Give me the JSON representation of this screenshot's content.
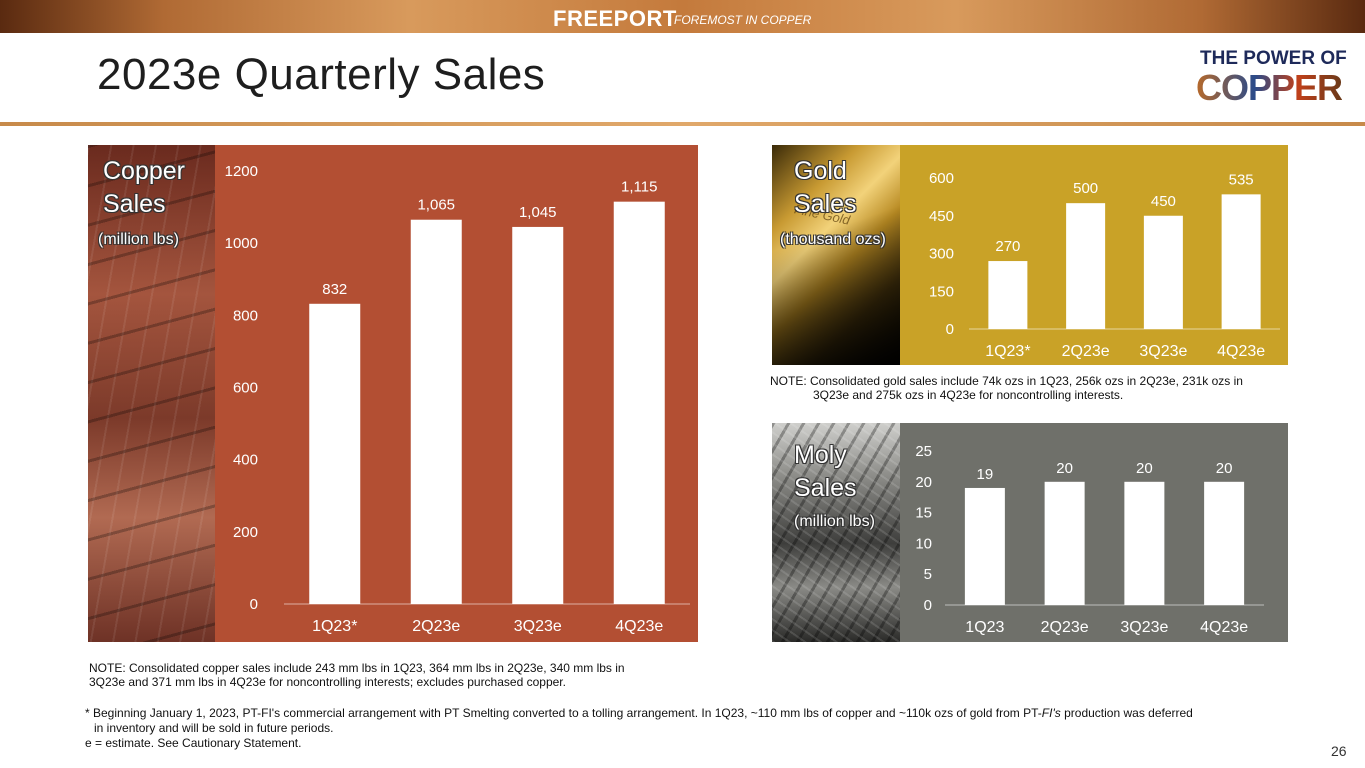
{
  "header": {
    "brand": "FREEPORT",
    "tagline": "FOREMOST IN COPPER",
    "title": "2023e Quarterly Sales",
    "logo_line1": "THE POWER OF",
    "logo_line2": "COPPER"
  },
  "colors": {
    "copper_panel": "#b34f33",
    "gold_panel": "#c9a227",
    "moly_panel": "#6f706a",
    "bar": "#ffffff"
  },
  "panels": {
    "copper": {
      "label_line1": "Copper",
      "label_line2": "Sales",
      "unit": "(million lbs)"
    },
    "gold": {
      "label_line1": "Gold",
      "label_line2": "Sales",
      "unit": "(thousand ozs)",
      "photo_text": "Fine Gold"
    },
    "moly": {
      "label_line1": "Moly",
      "label_line2": "Sales",
      "unit": "(million lbs)"
    }
  },
  "chart_data": [
    {
      "type": "bar",
      "title": "Copper Sales",
      "categories": [
        "1Q23*",
        "2Q23e",
        "3Q23e",
        "4Q23e"
      ],
      "values": [
        832,
        1065,
        1045,
        1115
      ],
      "data_labels": [
        "832",
        "1,065",
        "1,045",
        "1,115"
      ],
      "yticks": [
        "0",
        "200",
        "400",
        "600",
        "800",
        "1000",
        "1200"
      ],
      "ylim": [
        0,
        1200
      ],
      "ylabel": "(million lbs)",
      "grid": false
    },
    {
      "type": "bar",
      "title": "Gold Sales",
      "categories": [
        "1Q23*",
        "2Q23e",
        "3Q23e",
        "4Q23e"
      ],
      "values": [
        270,
        500,
        450,
        535
      ],
      "data_labels": [
        "270",
        "500",
        "450",
        "535"
      ],
      "yticks": [
        "0",
        "150",
        "300",
        "450",
        "600"
      ],
      "ylim": [
        0,
        600
      ],
      "ylabel": "(thousand ozs)",
      "grid": false
    },
    {
      "type": "bar",
      "title": "Moly Sales",
      "categories": [
        "1Q23",
        "2Q23e",
        "3Q23e",
        "4Q23e"
      ],
      "values": [
        19,
        20,
        20,
        20
      ],
      "data_labels": [
        "19",
        "20",
        "20",
        "20"
      ],
      "yticks": [
        "0",
        "5",
        "10",
        "15",
        "20",
        "25"
      ],
      "ylim": [
        0,
        25
      ],
      "ylabel": "(million lbs)",
      "grid": false
    }
  ],
  "notes": {
    "gold_line1": "NOTE: Consolidated gold sales include 74k ozs in 1Q23, 256k ozs in 2Q23e, 231k ozs in",
    "gold_line2": "3Q23e and 275k ozs in 4Q23e for noncontrolling interests.",
    "copper_line1": "NOTE: Consolidated copper sales include 243 mm lbs in 1Q23, 364 mm lbs in 2Q23e, 340 mm lbs in",
    "copper_line2": "3Q23e and 371 mm lbs in 4Q23e for noncontrolling interests; excludes purchased copper."
  },
  "footnotes": {
    "line1_a": "* Beginning January 1, 2023, PT-FI's commercial arrangement with PT Smelting converted to a tolling arrangement. In 1Q23, ~110 mm lbs of copper and ~110k ozs of gold from PT-",
    "line1_b": "FI's",
    "line1_c": " production was deferred",
    "line2": "in inventory and will be sold in future periods.",
    "line3": "e = estimate. See Cautionary Statement."
  },
  "page_number": "26"
}
